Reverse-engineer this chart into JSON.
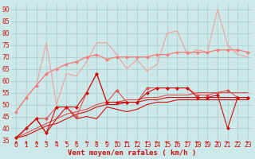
{
  "x": [
    0,
    1,
    2,
    3,
    4,
    5,
    6,
    7,
    8,
    9,
    10,
    11,
    12,
    13,
    14,
    15,
    16,
    17,
    18,
    19,
    20,
    21,
    22,
    23
  ],
  "series": [
    {
      "name": "light_pink_smooth_no_marker",
      "color": "#f0a0a0",
      "linewidth": 0.8,
      "marker": null,
      "values": [
        47,
        53,
        58,
        63,
        65,
        67,
        68,
        70,
        71,
        69,
        70,
        70,
        70,
        70,
        71,
        71,
        72,
        72,
        72,
        72,
        73,
        73,
        73,
        72
      ]
    },
    {
      "name": "light_pink_smooth_with_marker",
      "color": "#f08080",
      "linewidth": 0.8,
      "marker": "D",
      "markersize": 2.5,
      "values": [
        47,
        53,
        58,
        63,
        65,
        67,
        68,
        70,
        71,
        69,
        70,
        70,
        70,
        70,
        71,
        71,
        72,
        72,
        72,
        72,
        73,
        73,
        73,
        72
      ]
    },
    {
      "name": "light_pink_spiky_no_marker",
      "color": "#f0a0a0",
      "linewidth": 0.8,
      "marker": null,
      "values": [
        47,
        53,
        58,
        76,
        50,
        63,
        62,
        68,
        76,
        76,
        71,
        65,
        69,
        64,
        67,
        80,
        81,
        71,
        73,
        72,
        90,
        75,
        71,
        70
      ]
    },
    {
      "name": "medium_red_with_marker",
      "color": "#e05050",
      "linewidth": 0.8,
      "marker": "D",
      "markersize": 2.5,
      "values": [
        36,
        40,
        44,
        44,
        49,
        49,
        45,
        55,
        63,
        51,
        56,
        51,
        51,
        57,
        57,
        57,
        57,
        57,
        54,
        54,
        55,
        56,
        53,
        53
      ]
    },
    {
      "name": "dark_red_spiky_no_marker",
      "color": "#cc1010",
      "linewidth": 0.8,
      "marker": null,
      "values": [
        36,
        40,
        44,
        38,
        44,
        49,
        44,
        45,
        44,
        49,
        48,
        47,
        48,
        50,
        51,
        51,
        52,
        52,
        52,
        52,
        52,
        52,
        52,
        52
      ]
    },
    {
      "name": "dark_red_spiky_with_marker",
      "color": "#cc1010",
      "linewidth": 0.8,
      "marker": "D",
      "markersize": 2.5,
      "values": [
        36,
        40,
        44,
        38,
        49,
        49,
        49,
        55,
        63,
        51,
        51,
        51,
        51,
        55,
        57,
        57,
        57,
        57,
        53,
        53,
        54,
        40,
        53,
        53
      ]
    },
    {
      "name": "dark_red_linear",
      "color": "#cc1010",
      "linewidth": 0.8,
      "marker": null,
      "values": [
        36,
        37,
        39,
        41,
        42,
        44,
        46,
        47,
        49,
        50,
        50,
        51,
        51,
        52,
        52,
        53,
        53,
        53,
        53,
        53,
        53,
        53,
        53,
        53
      ]
    },
    {
      "name": "medium_red_linear",
      "color": "#e05050",
      "linewidth": 0.8,
      "marker": null,
      "values": [
        36,
        38,
        40,
        42,
        44,
        46,
        47,
        48,
        50,
        51,
        51,
        52,
        52,
        53,
        53,
        54,
        54,
        54,
        55,
        55,
        55,
        55,
        55,
        55
      ]
    }
  ],
  "xlabel": "Vent moyen/en rafales ( km/h )",
  "xlim": [
    -0.5,
    23.5
  ],
  "ylim": [
    35,
    93
  ],
  "ytick_labels": [
    "35",
    "",
    "",
    "",
    "40",
    "",
    "",
    "",
    "45",
    "",
    "",
    "",
    "50",
    "",
    "",
    "",
    "55",
    "",
    "",
    "",
    "60",
    "",
    "",
    "",
    "65",
    "",
    "",
    "",
    "70",
    "",
    "",
    "",
    "75",
    "",
    "",
    "",
    "80",
    "",
    "",
    "",
    "85",
    "",
    "",
    "",
    "90"
  ],
  "yticks_major": [
    35,
    40,
    45,
    50,
    55,
    60,
    65,
    70,
    75,
    80,
    85,
    90
  ],
  "xticks": [
    0,
    1,
    2,
    3,
    4,
    5,
    6,
    7,
    8,
    9,
    10,
    11,
    12,
    13,
    14,
    15,
    16,
    17,
    18,
    19,
    20,
    21,
    22,
    23
  ],
  "bg_color": "#cce8e8",
  "grid_color": "#aacccc",
  "text_color": "#cc1010",
  "xlabel_fontsize": 6.5,
  "tick_fontsize": 5.5
}
